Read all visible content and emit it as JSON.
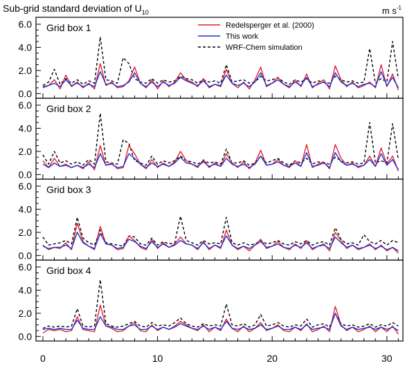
{
  "figure": {
    "title": "Sub-grid standard deviation of U",
    "title_subscript": "10",
    "units": "m s",
    "units_superscript": "-1"
  },
  "legend": {
    "placement": "top-right",
    "items": [
      {
        "label": "Redelsperger et al. (2000)",
        "color": "#e0222e",
        "dash": "solid"
      },
      {
        "label": "This work",
        "color": "#1f2fd6",
        "dash": "solid"
      },
      {
        "label": "WRF-Chem simulation",
        "color": "#000000",
        "dash": "dashed"
      }
    ]
  },
  "chart_data": {
    "type": "line",
    "xlim": [
      -0.6,
      31.4
    ],
    "ylim": [
      -0.4,
      6.6
    ],
    "x_ticks": [
      0,
      10,
      20,
      30
    ],
    "x_tick_labels": [
      "0",
      "10",
      "20",
      "30"
    ],
    "y_ticks": [
      0,
      2,
      4,
      6
    ],
    "y_tick_labels": [
      "0.0",
      "2.0",
      "4.0",
      "6.0"
    ],
    "x": [
      0,
      0.5,
      1,
      1.5,
      2,
      2.5,
      3,
      3.5,
      4,
      4.5,
      5,
      5.5,
      6,
      6.5,
      7,
      7.5,
      8,
      8.5,
      9,
      9.5,
      10,
      10.5,
      11,
      11.5,
      12,
      12.5,
      13,
      13.5,
      14,
      14.5,
      15,
      15.5,
      16,
      16.5,
      17,
      17.5,
      18,
      18.5,
      19,
      19.5,
      20,
      20.5,
      21,
      21.5,
      22,
      22.5,
      23,
      23.5,
      24,
      24.5,
      25,
      25.5,
      26,
      26.5,
      27,
      27.5,
      28,
      28.5,
      29,
      29.5,
      30,
      30.5,
      31
    ],
    "panels": [
      {
        "label": "Grid box 1",
        "series": [
          {
            "name": "Redelsperger et al. (2000)",
            "values": [
              0.5,
              0.7,
              1.2,
              0.4,
              1.6,
              0.6,
              1.0,
              0.5,
              0.9,
              0.4,
              2.6,
              0.7,
              1.0,
              0.5,
              0.6,
              1.1,
              2.3,
              0.9,
              0.5,
              1.2,
              0.4,
              1.1,
              0.6,
              1.0,
              1.8,
              1.2,
              1.0,
              0.6,
              1.3,
              0.5,
              0.8,
              0.6,
              2.1,
              0.9,
              0.5,
              1.0,
              0.4,
              1.2,
              2.3,
              0.6,
              0.9,
              1.4,
              0.8,
              0.5,
              1.2,
              0.6,
              1.7,
              0.5,
              0.9,
              1.2,
              0.4,
              2.4,
              1.2,
              0.6,
              1.0,
              0.5,
              0.7,
              1.0,
              0.5,
              2.5,
              0.6,
              1.7,
              0.3
            ]
          },
          {
            "name": "This work",
            "values": [
              0.6,
              0.7,
              0.9,
              0.6,
              1.2,
              0.7,
              0.9,
              0.6,
              0.8,
              0.6,
              1.9,
              0.8,
              0.9,
              0.6,
              0.7,
              1.0,
              1.8,
              0.9,
              0.6,
              1.0,
              0.6,
              1.0,
              0.7,
              0.9,
              1.4,
              1.1,
              0.9,
              0.7,
              1.1,
              0.6,
              0.8,
              0.7,
              1.6,
              0.9,
              0.7,
              0.9,
              0.6,
              1.0,
              1.8,
              0.7,
              0.9,
              1.2,
              0.8,
              0.6,
              1.0,
              0.7,
              1.4,
              0.6,
              0.8,
              1.0,
              0.6,
              1.8,
              1.0,
              0.7,
              0.9,
              0.6,
              0.8,
              0.9,
              0.6,
              1.9,
              0.7,
              1.4,
              0.5
            ]
          },
          {
            "name": "WRF-Chem simulation",
            "values": [
              0.7,
              1.0,
              2.1,
              0.8,
              1.3,
              0.9,
              1.2,
              0.8,
              1.1,
              0.9,
              4.9,
              1.2,
              1.1,
              0.9,
              3.1,
              2.6,
              1.3,
              1.0,
              0.9,
              1.3,
              0.9,
              1.2,
              1.0,
              1.1,
              1.5,
              1.3,
              1.2,
              0.9,
              1.2,
              1.0,
              1.1,
              0.9,
              2.5,
              1.0,
              1.1,
              1.2,
              0.9,
              1.0,
              1.5,
              1.1,
              1.2,
              1.4,
              1.0,
              0.8,
              1.2,
              1.0,
              1.3,
              0.9,
              1.1,
              1.0,
              0.9,
              1.5,
              1.2,
              1.0,
              1.1,
              0.9,
              1.0,
              3.9,
              0.9,
              1.3,
              1.0,
              4.5,
              1.3
            ]
          }
        ]
      },
      {
        "label": "Grid box 2",
        "series": [
          {
            "name": "Redelsperger et al. (2000)",
            "values": [
              1.2,
              0.6,
              1.4,
              0.7,
              0.9,
              0.6,
              0.8,
              0.5,
              1.1,
              0.4,
              2.5,
              0.8,
              1.0,
              0.5,
              0.6,
              2.5,
              1.8,
              0.9,
              0.5,
              1.3,
              0.6,
              1.0,
              0.7,
              1.1,
              2.0,
              1.2,
              0.9,
              0.6,
              1.3,
              0.6,
              1.0,
              0.7,
              1.8,
              1.0,
              0.6,
              1.1,
              0.5,
              1.0,
              2.1,
              0.8,
              0.9,
              1.3,
              0.8,
              0.6,
              1.2,
              0.7,
              2.6,
              0.6,
              0.9,
              1.1,
              0.5,
              2.6,
              1.4,
              0.8,
              1.0,
              0.6,
              0.8,
              1.6,
              0.7,
              2.3,
              0.9,
              1.6,
              0.3
            ]
          },
          {
            "name": "This work",
            "values": [
              0.9,
              0.6,
              1.0,
              0.7,
              0.8,
              0.6,
              0.8,
              0.6,
              0.9,
              0.6,
              1.8,
              0.8,
              0.9,
              0.6,
              0.7,
              1.8,
              1.4,
              0.9,
              0.6,
              1.0,
              0.7,
              0.9,
              0.7,
              1.0,
              1.5,
              1.0,
              0.9,
              0.7,
              1.1,
              0.7,
              0.9,
              0.7,
              1.4,
              0.9,
              0.7,
              0.9,
              0.6,
              0.9,
              1.6,
              0.8,
              0.9,
              1.1,
              0.8,
              0.7,
              1.0,
              0.7,
              1.9,
              0.7,
              0.8,
              1.0,
              0.6,
              1.9,
              1.1,
              0.8,
              0.9,
              0.7,
              0.8,
              1.3,
              0.7,
              1.8,
              0.8,
              1.3,
              0.4
            ]
          },
          {
            "name": "WRF-Chem simulation",
            "values": [
              1.7,
              0.9,
              2.0,
              1.0,
              1.2,
              0.9,
              1.1,
              0.8,
              1.3,
              0.9,
              5.3,
              1.1,
              1.0,
              0.9,
              3.0,
              2.7,
              1.2,
              1.0,
              0.8,
              1.6,
              0.9,
              1.2,
              1.0,
              1.2,
              1.6,
              1.2,
              1.1,
              0.9,
              1.2,
              1.0,
              1.1,
              0.9,
              2.2,
              1.0,
              1.0,
              1.2,
              0.8,
              1.0,
              1.6,
              1.0,
              1.2,
              1.4,
              1.0,
              0.8,
              1.2,
              1.0,
              1.4,
              0.9,
              1.1,
              1.0,
              0.9,
              1.5,
              1.2,
              1.0,
              1.1,
              0.9,
              1.0,
              4.5,
              1.0,
              1.2,
              1.0,
              4.4,
              1.3
            ]
          }
        ]
      },
      {
        "label": "Grid box 3",
        "series": [
          {
            "name": "Redelsperger et al. (2000)",
            "values": [
              0.9,
              0.5,
              0.7,
              0.6,
              1.1,
              0.5,
              2.8,
              1.2,
              0.8,
              0.5,
              2.5,
              1.0,
              0.9,
              0.5,
              0.6,
              1.7,
              1.3,
              0.7,
              0.5,
              1.4,
              0.6,
              1.1,
              0.7,
              1.0,
              1.6,
              1.0,
              0.9,
              0.5,
              1.2,
              0.5,
              0.9,
              0.6,
              2.2,
              0.9,
              0.5,
              0.8,
              0.4,
              0.9,
              1.4,
              0.6,
              0.8,
              1.2,
              0.7,
              0.5,
              1.0,
              0.6,
              1.3,
              0.5,
              0.8,
              1.0,
              0.4,
              2.0,
              1.3,
              0.6,
              0.9,
              0.5,
              0.7,
              1.0,
              0.5,
              0.9,
              0.4,
              0.7,
              0.2
            ]
          },
          {
            "name": "This work",
            "values": [
              0.8,
              0.6,
              0.7,
              0.7,
              0.9,
              0.6,
              2.0,
              1.1,
              0.8,
              0.6,
              1.9,
              1.0,
              0.9,
              0.6,
              0.7,
              1.4,
              1.2,
              0.8,
              0.6,
              1.2,
              0.7,
              1.0,
              0.7,
              0.9,
              1.3,
              1.0,
              0.9,
              0.6,
              1.1,
              0.6,
              0.9,
              0.7,
              1.7,
              0.9,
              0.6,
              0.8,
              0.6,
              0.9,
              1.2,
              0.7,
              0.8,
              1.0,
              0.7,
              0.6,
              0.9,
              0.7,
              1.1,
              0.6,
              0.8,
              0.9,
              0.6,
              1.6,
              1.1,
              0.7,
              0.9,
              0.6,
              0.7,
              0.9,
              0.6,
              0.8,
              0.5,
              0.7,
              0.4
            ]
          },
          {
            "name": "WRF-Chem simulation",
            "values": [
              1.6,
              0.9,
              1.0,
              1.1,
              1.3,
              1.0,
              3.3,
              1.5,
              1.1,
              0.9,
              2.2,
              1.1,
              1.0,
              0.9,
              0.8,
              1.7,
              1.6,
              1.0,
              0.9,
              1.5,
              0.9,
              1.2,
              1.0,
              1.1,
              3.4,
              1.3,
              1.1,
              0.9,
              1.3,
              1.0,
              1.1,
              1.0,
              3.3,
              1.1,
              0.9,
              1.1,
              0.9,
              1.0,
              1.3,
              1.0,
              1.1,
              1.3,
              1.0,
              0.9,
              1.2,
              1.0,
              1.3,
              0.9,
              1.1,
              1.2,
              0.9,
              2.4,
              1.4,
              1.0,
              1.1,
              0.9,
              1.8,
              1.2,
              1.0,
              1.3,
              0.9,
              1.3,
              1.1
            ]
          }
        ]
      },
      {
        "label": "Grid box 4",
        "series": [
          {
            "name": "Redelsperger et al. (2000)",
            "values": [
              0.3,
              0.6,
              0.5,
              0.6,
              0.4,
              0.5,
              1.7,
              0.6,
              0.5,
              0.4,
              2.7,
              0.9,
              0.7,
              0.4,
              0.5,
              0.9,
              1.2,
              0.5,
              0.4,
              1.0,
              0.5,
              0.8,
              0.6,
              0.9,
              1.3,
              1.0,
              0.7,
              0.5,
              1.0,
              0.4,
              0.8,
              0.5,
              1.5,
              0.7,
              0.4,
              0.9,
              0.4,
              0.7,
              1.2,
              0.5,
              0.7,
              1.0,
              0.5,
              0.4,
              0.8,
              0.5,
              1.1,
              0.4,
              0.6,
              0.9,
              0.4,
              2.6,
              1.0,
              0.5,
              0.8,
              0.4,
              0.6,
              0.9,
              0.4,
              0.8,
              0.4,
              0.9,
              0.2
            ]
          },
          {
            "name": "This work",
            "values": [
              0.6,
              0.7,
              0.6,
              0.7,
              0.6,
              0.6,
              1.4,
              0.7,
              0.6,
              0.6,
              1.7,
              0.9,
              0.8,
              0.6,
              0.6,
              0.9,
              1.0,
              0.6,
              0.6,
              0.9,
              0.6,
              0.8,
              0.6,
              0.8,
              1.1,
              0.9,
              0.7,
              0.6,
              0.9,
              0.6,
              0.8,
              0.6,
              1.3,
              0.7,
              0.6,
              0.8,
              0.6,
              0.7,
              1.0,
              0.6,
              0.7,
              0.9,
              0.6,
              0.6,
              0.8,
              0.6,
              1.0,
              0.6,
              0.7,
              0.8,
              0.6,
              2.0,
              0.9,
              0.6,
              0.8,
              0.6,
              0.7,
              0.8,
              0.6,
              0.8,
              0.6,
              0.8,
              0.5
            ]
          },
          {
            "name": "WRF-Chem simulation",
            "values": [
              0.7,
              0.9,
              0.8,
              0.9,
              0.8,
              0.9,
              2.4,
              0.9,
              0.8,
              0.9,
              4.9,
              1.1,
              0.9,
              0.8,
              0.9,
              1.1,
              1.3,
              0.9,
              0.8,
              1.2,
              0.9,
              1.0,
              0.9,
              1.2,
              1.6,
              1.1,
              0.9,
              0.8,
              1.1,
              0.9,
              1.0,
              0.9,
              2.8,
              1.0,
              0.9,
              1.1,
              0.8,
              1.0,
              1.9,
              0.9,
              1.0,
              1.2,
              0.9,
              0.8,
              1.0,
              0.9,
              1.5,
              0.8,
              1.0,
              1.1,
              0.8,
              2.0,
              1.1,
              0.9,
              1.0,
              0.8,
              0.9,
              1.1,
              0.8,
              1.0,
              0.9,
              1.2,
              0.9
            ]
          }
        ]
      }
    ]
  }
}
